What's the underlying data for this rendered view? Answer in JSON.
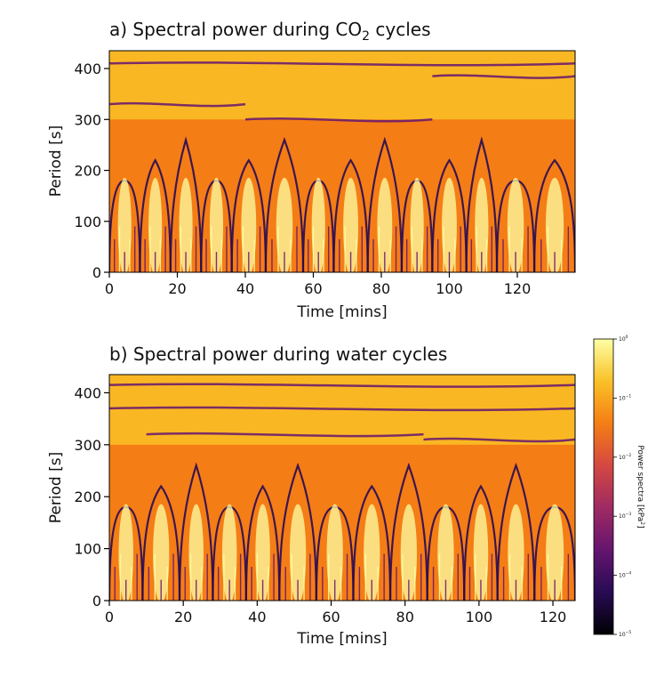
{
  "chart_data": [
    {
      "type": "heatmap",
      "panel": "a",
      "title_main": "a) Spectral power during CO",
      "title_sub": "2",
      "title_tail": " cycles",
      "xlabel": "Time [mins]",
      "ylabel": "Period [s]",
      "xlim": [
        0,
        137
      ],
      "ylim": [
        0,
        435
      ],
      "xticks": [
        0,
        20,
        40,
        60,
        80,
        100,
        120
      ],
      "yticks": [
        0,
        100,
        200,
        300,
        400
      ],
      "ridges": [
        {
          "x0": 0,
          "x1": 137,
          "y": 410
        },
        {
          "x0": 0,
          "x1": 40,
          "y": 330
        },
        {
          "x0": 40,
          "x1": 95,
          "y": 300
        },
        {
          "x0": 95,
          "x1": 137,
          "y": 385
        }
      ],
      "lobe_bounds": [
        0,
        9,
        18,
        27,
        36,
        46,
        57,
        66,
        76,
        86,
        95,
        105,
        114,
        125,
        137
      ]
    },
    {
      "type": "heatmap",
      "panel": "b",
      "title_main": "b) Spectral power during water cycles",
      "title_sub": "",
      "title_tail": "",
      "xlabel": "Time [mins]",
      "ylabel": "Period [s]",
      "xlim": [
        0,
        126
      ],
      "ylim": [
        0,
        435
      ],
      "xticks": [
        0,
        20,
        40,
        60,
        80,
        100,
        120
      ],
      "yticks": [
        0,
        100,
        200,
        300,
        400
      ],
      "ridges": [
        {
          "x0": 0,
          "x1": 126,
          "y": 415
        },
        {
          "x0": 0,
          "x1": 126,
          "y": 370
        },
        {
          "x0": 10,
          "x1": 85,
          "y": 320
        },
        {
          "x0": 85,
          "x1": 126,
          "y": 310
        }
      ],
      "lobe_bounds": [
        0,
        9,
        19,
        28,
        37,
        46,
        56,
        66,
        76,
        86,
        96,
        105,
        115,
        126
      ]
    }
  ],
  "colorbar": {
    "label": "Power spectra [kPa",
    "label_sup": "2",
    "label_tail": "]",
    "ticks": [
      "10",
      "10",
      "10",
      "10",
      "10",
      "10"
    ],
    "tick_exponents": [
      "0",
      "−1",
      "−2",
      "−3",
      "−4",
      "−5"
    ],
    "tick_values": [
      1,
      0.1,
      0.01,
      0.001,
      0.0001,
      1e-05
    ],
    "scale": "log",
    "colormap": "inferno",
    "stops": [
      "#000004",
      "#280b54",
      "#65156e",
      "#9f2a63",
      "#d44842",
      "#f57d15",
      "#fac127",
      "#fcffa4"
    ]
  }
}
